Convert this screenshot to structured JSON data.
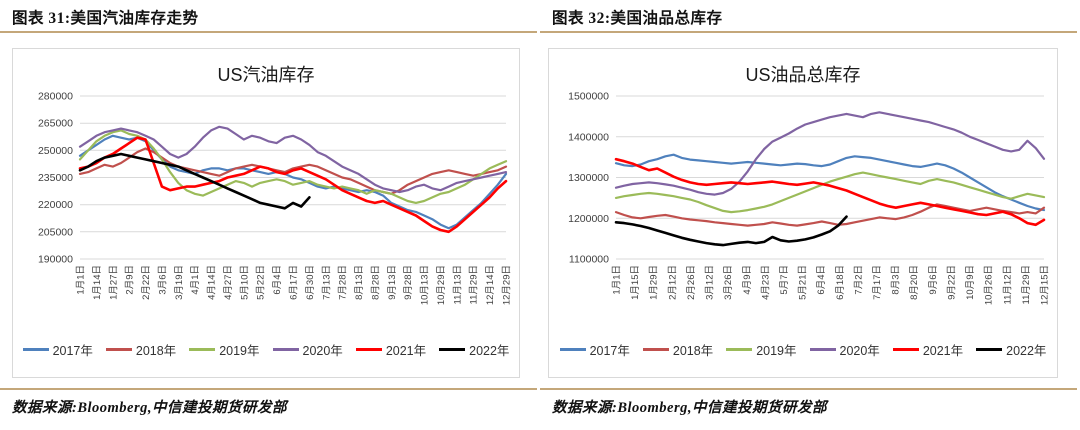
{
  "colors": {
    "divider": "#c4a77a",
    "grid": "#d9d9d9",
    "box_border": "#d9d9d9",
    "tick_text": "#404040"
  },
  "figures": [
    {
      "header": "图表 31:美国汽油库存走势",
      "source": "数据来源:Bloomberg,中信建投期货研发部"
    },
    {
      "header": "图表 32:美国油品总库存",
      "source": "数据来源:Bloomberg,中信建投期货研发部"
    }
  ],
  "chart_data": [
    {
      "type": "line",
      "title": "US汽油库存",
      "xlabel": "",
      "ylabel": "",
      "ylim": [
        190000,
        280000
      ],
      "ytick_step": 15000,
      "grid": true,
      "legend_position": "bottom",
      "x_points": 53,
      "x_labels": [
        "1月1日",
        "1月14日",
        "1月27日",
        "2月9日",
        "2月22日",
        "3月6日",
        "3月19日",
        "4月1日",
        "4月14日",
        "4月27日",
        "5月10日",
        "5月22日",
        "6月4日",
        "6月17日",
        "6月30日",
        "7月13日",
        "7月28日",
        "8月13日",
        "8月28日",
        "9月13日",
        "9月28日",
        "10月13日",
        "10月29日",
        "11月13日",
        "11月29日",
        "12月14日",
        "12月29日"
      ],
      "series": [
        {
          "name": "2017年",
          "color": "#4F81BD",
          "values": [
            247000,
            250000,
            253000,
            256000,
            258000,
            257000,
            256000,
            257000,
            255000,
            250000,
            245000,
            241000,
            239000,
            238000,
            237000,
            239000,
            240000,
            240000,
            239000,
            240000,
            240000,
            239000,
            238000,
            237000,
            238000,
            237000,
            235000,
            234000,
            232000,
            230000,
            229000,
            230000,
            229000,
            228000,
            227000,
            228000,
            227000,
            225000,
            221000,
            219000,
            217000,
            216000,
            214000,
            212000,
            209000,
            207000,
            209000,
            213000,
            217000,
            221000,
            226000,
            231000,
            237000
          ]
        },
        {
          "name": "2018年",
          "color": "#C0504D",
          "values": [
            237000,
            238000,
            240000,
            242000,
            241000,
            243000,
            246000,
            249000,
            251000,
            249000,
            246000,
            243000,
            241000,
            240000,
            239000,
            238000,
            237000,
            236000,
            238000,
            240000,
            241000,
            242000,
            241000,
            240000,
            239000,
            238000,
            240000,
            241000,
            242000,
            241000,
            239000,
            237000,
            235000,
            234000,
            232000,
            230000,
            228000,
            227000,
            226000,
            228000,
            231000,
            233000,
            235000,
            237000,
            238000,
            239000,
            238000,
            237000,
            236000,
            237000,
            238000,
            239000,
            241000
          ]
        },
        {
          "name": "2019年",
          "color": "#9BBB59",
          "values": [
            245000,
            250000,
            255000,
            258000,
            260000,
            261000,
            259000,
            258000,
            256000,
            251000,
            245000,
            238000,
            232000,
            228000,
            226000,
            225000,
            227000,
            229000,
            231000,
            233000,
            232000,
            230000,
            232000,
            233000,
            234000,
            233000,
            231000,
            232000,
            233000,
            231000,
            230000,
            229000,
            230000,
            229000,
            228000,
            226000,
            228000,
            227000,
            226000,
            224000,
            222000,
            221000,
            222000,
            224000,
            226000,
            227000,
            229000,
            231000,
            234000,
            237000,
            240000,
            242000,
            244000
          ]
        },
        {
          "name": "2020年",
          "color": "#8064A2",
          "values": [
            252000,
            255000,
            258000,
            260000,
            261000,
            262000,
            261000,
            260000,
            258000,
            256000,
            252000,
            248000,
            246000,
            248000,
            252000,
            257000,
            261000,
            263000,
            262000,
            259000,
            256000,
            258000,
            257000,
            255000,
            254000,
            257000,
            258000,
            256000,
            253000,
            249000,
            247000,
            244000,
            241000,
            239000,
            237000,
            234000,
            231000,
            229000,
            228000,
            227000,
            228000,
            230000,
            231000,
            229000,
            228000,
            230000,
            232000,
            233000,
            234000,
            235000,
            236000,
            237000,
            238000
          ]
        },
        {
          "name": "2021年",
          "color": "#FF0000",
          "values": [
            240000,
            241000,
            243000,
            246000,
            248000,
            251000,
            254000,
            257000,
            256000,
            243000,
            230000,
            228000,
            229000,
            230000,
            230000,
            231000,
            232000,
            233000,
            235000,
            236000,
            237000,
            239000,
            241000,
            240000,
            238000,
            237000,
            239000,
            240000,
            238000,
            236000,
            234000,
            231000,
            228000,
            226000,
            224000,
            222000,
            221000,
            222000,
            220000,
            218000,
            216000,
            214000,
            211000,
            208000,
            206000,
            205000,
            208000,
            212000,
            216000,
            220000,
            224000,
            229000,
            233000
          ]
        },
        {
          "name": "2022年",
          "color": "#000000",
          "values": [
            239000,
            241000,
            244000,
            246000,
            247000,
            248000,
            247000,
            246000,
            245000,
            244000,
            243000,
            242000,
            241000,
            239000,
            237000,
            235000,
            233000,
            231000,
            229000,
            227000,
            225000,
            223000,
            221000,
            220000,
            219000,
            218000,
            221000,
            219000,
            224000
          ]
        }
      ]
    },
    {
      "type": "line",
      "title": "US油品总库存",
      "xlabel": "",
      "ylabel": "",
      "ylim": [
        1100000,
        1500000
      ],
      "ytick_step": 100000,
      "grid": true,
      "legend_position": "bottom",
      "x_points": 53,
      "x_labels": [
        "1月1日",
        "1月15日",
        "1月29日",
        "2月12日",
        "2月26日",
        "3月12日",
        "3月26日",
        "4月9日",
        "4月23日",
        "5月7日",
        "5月21日",
        "6月4日",
        "6月18日",
        "7月2日",
        "7月17日",
        "8月3日",
        "8月20日",
        "9月6日",
        "9月22日",
        "10月9日",
        "10月26日",
        "11月12日",
        "11月29日",
        "12月15日"
      ],
      "series": [
        {
          "name": "2017年",
          "color": "#4F81BD",
          "values": [
            1335000,
            1330000,
            1328000,
            1332000,
            1340000,
            1345000,
            1352000,
            1356000,
            1348000,
            1344000,
            1342000,
            1340000,
            1338000,
            1336000,
            1334000,
            1336000,
            1338000,
            1336000,
            1334000,
            1332000,
            1330000,
            1332000,
            1334000,
            1333000,
            1330000,
            1328000,
            1332000,
            1340000,
            1348000,
            1352000,
            1350000,
            1348000,
            1344000,
            1340000,
            1336000,
            1332000,
            1328000,
            1326000,
            1330000,
            1334000,
            1330000,
            1322000,
            1312000,
            1300000,
            1288000,
            1276000,
            1264000,
            1254000,
            1246000,
            1238000,
            1230000,
            1224000,
            1220000
          ]
        },
        {
          "name": "2018年",
          "color": "#C0504D",
          "values": [
            1215000,
            1208000,
            1202000,
            1200000,
            1203000,
            1206000,
            1208000,
            1204000,
            1200000,
            1197000,
            1195000,
            1193000,
            1190000,
            1188000,
            1186000,
            1184000,
            1182000,
            1184000,
            1186000,
            1190000,
            1187000,
            1184000,
            1182000,
            1185000,
            1188000,
            1192000,
            1188000,
            1184000,
            1186000,
            1190000,
            1194000,
            1198000,
            1202000,
            1200000,
            1198000,
            1202000,
            1208000,
            1216000,
            1226000,
            1234000,
            1230000,
            1226000,
            1222000,
            1218000,
            1222000,
            1226000,
            1222000,
            1218000,
            1215000,
            1212000,
            1215000,
            1212000,
            1226000
          ]
        },
        {
          "name": "2019年",
          "color": "#9BBB59",
          "values": [
            1250000,
            1254000,
            1257000,
            1260000,
            1262000,
            1260000,
            1257000,
            1254000,
            1250000,
            1246000,
            1240000,
            1232000,
            1225000,
            1218000,
            1215000,
            1217000,
            1220000,
            1224000,
            1228000,
            1234000,
            1242000,
            1250000,
            1258000,
            1266000,
            1274000,
            1282000,
            1290000,
            1296000,
            1302000,
            1308000,
            1312000,
            1308000,
            1304000,
            1300000,
            1296000,
            1292000,
            1288000,
            1284000,
            1292000,
            1296000,
            1292000,
            1288000,
            1282000,
            1276000,
            1270000,
            1264000,
            1258000,
            1252000,
            1248000,
            1254000,
            1260000,
            1256000,
            1252000
          ]
        },
        {
          "name": "2020年",
          "color": "#8064A2",
          "values": [
            1275000,
            1280000,
            1284000,
            1286000,
            1288000,
            1286000,
            1283000,
            1280000,
            1275000,
            1270000,
            1264000,
            1260000,
            1258000,
            1262000,
            1272000,
            1290000,
            1315000,
            1345000,
            1370000,
            1388000,
            1398000,
            1408000,
            1420000,
            1430000,
            1436000,
            1442000,
            1448000,
            1452000,
            1456000,
            1452000,
            1448000,
            1456000,
            1460000,
            1456000,
            1452000,
            1448000,
            1444000,
            1440000,
            1436000,
            1430000,
            1424000,
            1418000,
            1410000,
            1400000,
            1392000,
            1384000,
            1376000,
            1368000,
            1364000,
            1368000,
            1390000,
            1372000,
            1346000
          ]
        },
        {
          "name": "2021年",
          "color": "#FF0000",
          "values": [
            1345000,
            1340000,
            1334000,
            1326000,
            1318000,
            1322000,
            1312000,
            1302000,
            1294000,
            1288000,
            1284000,
            1282000,
            1284000,
            1286000,
            1288000,
            1286000,
            1284000,
            1286000,
            1288000,
            1290000,
            1287000,
            1284000,
            1282000,
            1285000,
            1288000,
            1284000,
            1280000,
            1274000,
            1268000,
            1260000,
            1252000,
            1244000,
            1236000,
            1230000,
            1226000,
            1230000,
            1234000,
            1238000,
            1234000,
            1230000,
            1226000,
            1222000,
            1218000,
            1214000,
            1210000,
            1208000,
            1212000,
            1216000,
            1210000,
            1200000,
            1188000,
            1184000,
            1196000
          ]
        },
        {
          "name": "2022年",
          "color": "#000000",
          "values": [
            1190000,
            1188000,
            1185000,
            1181000,
            1176000,
            1170000,
            1164000,
            1158000,
            1152000,
            1147000,
            1143000,
            1139000,
            1136000,
            1134000,
            1137000,
            1140000,
            1142000,
            1139000,
            1142000,
            1154000,
            1146000,
            1143000,
            1145000,
            1148000,
            1153000,
            1160000,
            1168000,
            1182000,
            1204000
          ]
        }
      ]
    }
  ]
}
